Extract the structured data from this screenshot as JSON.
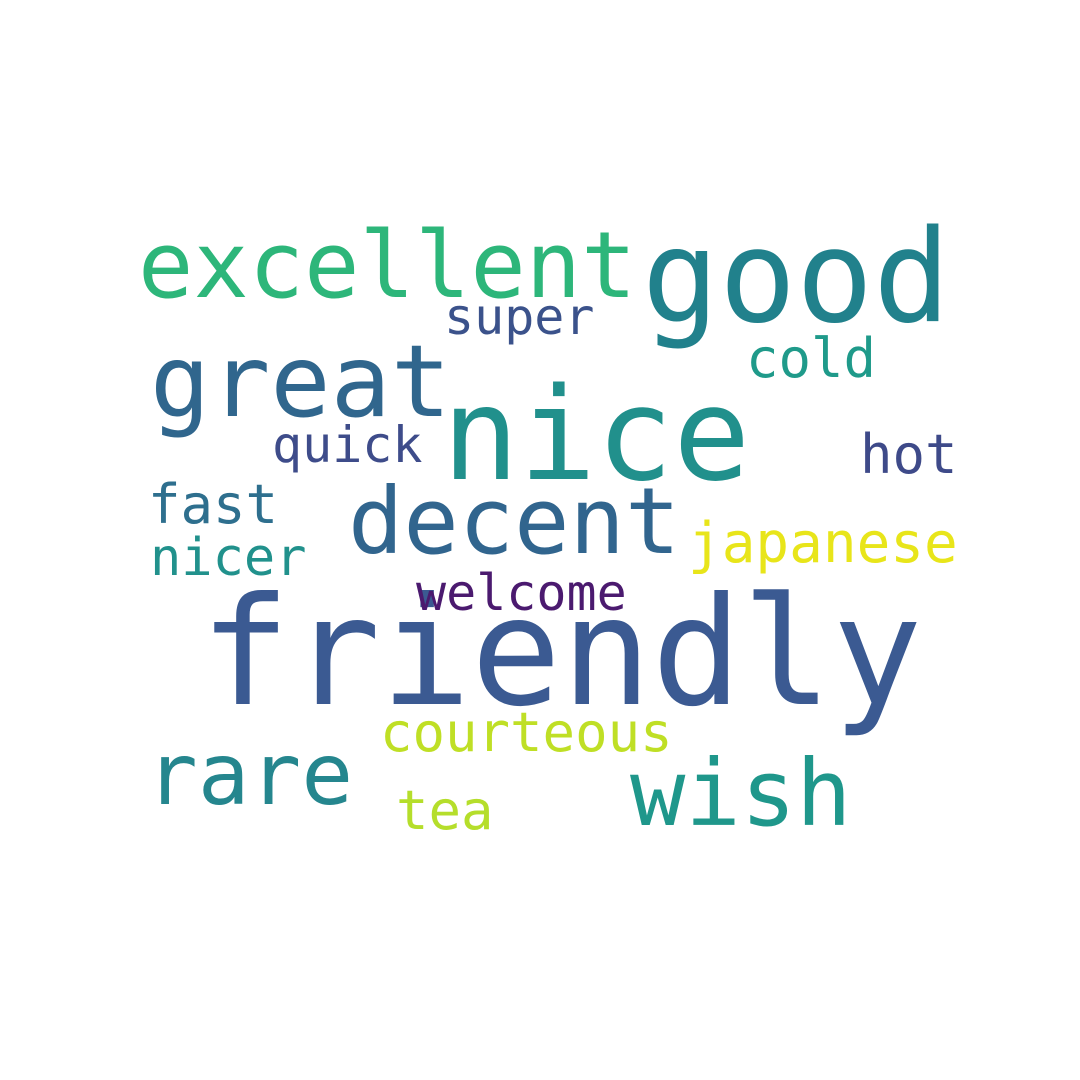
{
  "words": [
    {
      "id": "friendly",
      "text": "friendly",
      "color": "#3b5a92"
    },
    {
      "id": "nice",
      "text": "nice",
      "color": "#21908c"
    },
    {
      "id": "good",
      "text": "good",
      "color": "#21818c"
    },
    {
      "id": "excellent",
      "text": "excellent",
      "color": "#2db67a"
    },
    {
      "id": "great",
      "text": "great",
      "color": "#30668d"
    },
    {
      "id": "decent",
      "text": "decent",
      "color": "#31658e"
    },
    {
      "id": "rare",
      "text": "rare",
      "color": "#25868e"
    },
    {
      "id": "wish",
      "text": "wish",
      "color": "#1f978b"
    },
    {
      "id": "japanese",
      "text": "japanese",
      "color": "#e8e51a"
    },
    {
      "id": "courteous",
      "text": "courteous",
      "color": "#bfdf25"
    },
    {
      "id": "welcome",
      "text": "welcome",
      "color": "#4b1a6f"
    },
    {
      "id": "super",
      "text": "super",
      "color": "#3b528b"
    },
    {
      "id": "cold",
      "text": "cold",
      "color": "#1f9a8a"
    },
    {
      "id": "hot",
      "text": "hot",
      "color": "#3e4a89"
    },
    {
      "id": "quick",
      "text": "quick",
      "color": "#3e4c8a"
    },
    {
      "id": "fast",
      "text": "fast",
      "color": "#2e6f8e"
    },
    {
      "id": "nicer",
      "text": "nicer",
      "color": "#21918c"
    },
    {
      "id": "tea",
      "text": "tea",
      "color": "#b5de2b"
    }
  ]
}
